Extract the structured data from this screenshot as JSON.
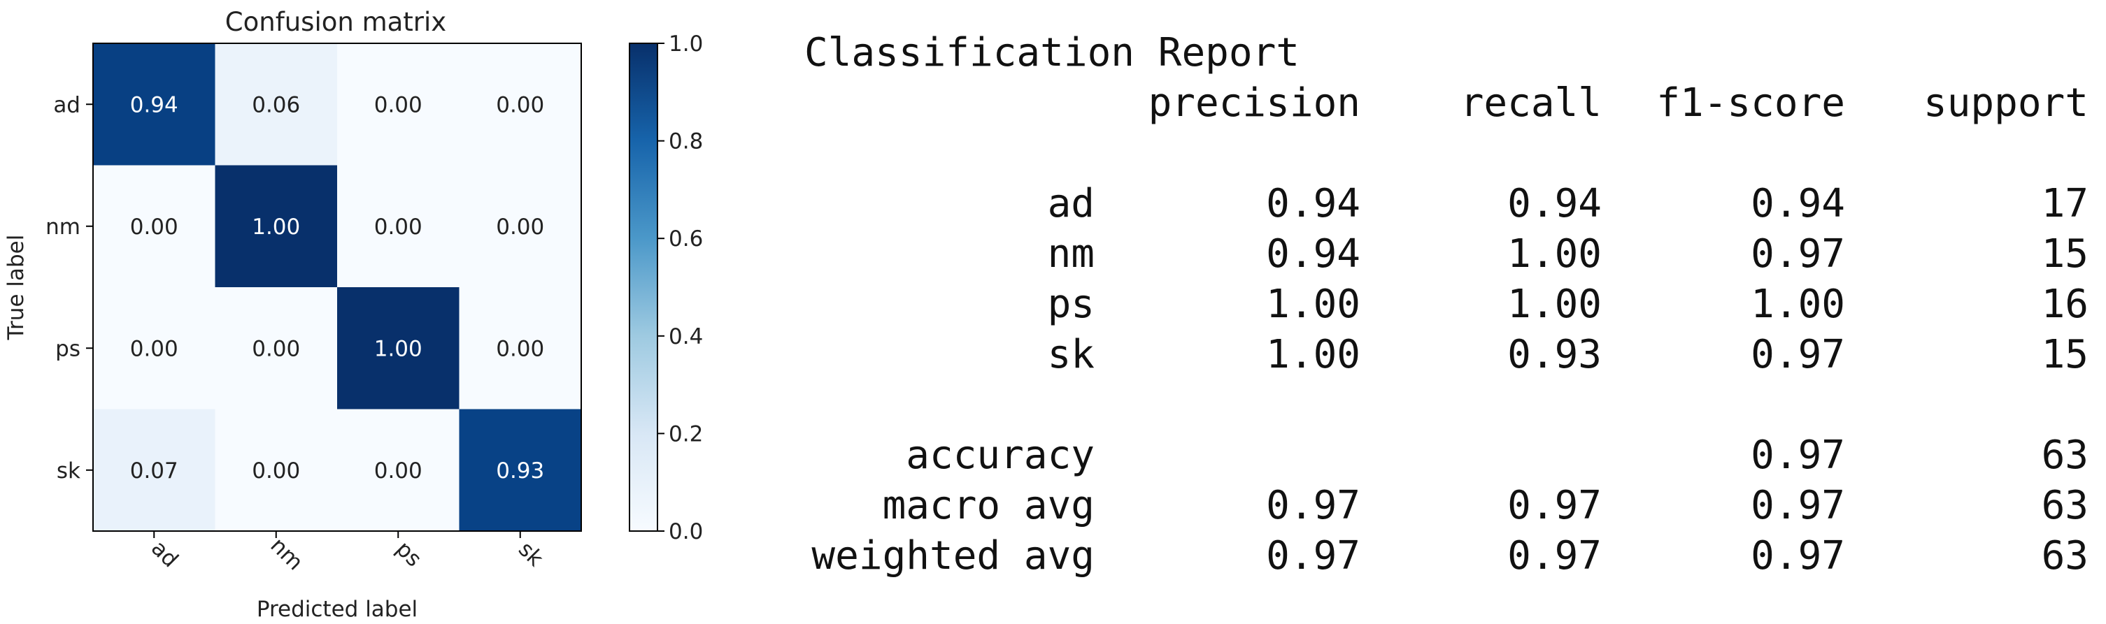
{
  "chart_data": [
    {
      "type": "heatmap",
      "title": "Confusion matrix",
      "xlabel": "Predicted label",
      "ylabel": "True label",
      "x_categories": [
        "ad",
        "nm",
        "ps",
        "sk"
      ],
      "y_categories": [
        "ad",
        "nm",
        "ps",
        "sk"
      ],
      "values": [
        [
          0.94,
          0.06,
          0.0,
          0.0
        ],
        [
          0.0,
          1.0,
          0.0,
          0.0
        ],
        [
          0.0,
          0.0,
          1.0,
          0.0
        ],
        [
          0.07,
          0.0,
          0.0,
          0.93
        ]
      ],
      "cell_labels": [
        [
          "0.94",
          "0.06",
          "0.00",
          "0.00"
        ],
        [
          "0.00",
          "1.00",
          "0.00",
          "0.00"
        ],
        [
          "0.00",
          "0.00",
          "1.00",
          "0.00"
        ],
        [
          "0.07",
          "0.00",
          "0.00",
          "0.93"
        ]
      ],
      "colormap": "Blues",
      "colorbar": {
        "range": [
          0.0,
          1.0
        ],
        "ticks": [
          0.0,
          0.2,
          0.4,
          0.6,
          0.8,
          1.0
        ],
        "tick_labels": [
          "0.0",
          "0.2",
          "0.4",
          "0.6",
          "0.8",
          "1.0"
        ]
      },
      "colors": {
        "low": "#f7fbff",
        "high": "#08306b",
        "text_dark": "#222222",
        "text_light": "#ffffff"
      }
    },
    {
      "type": "table",
      "title": "Classification Report",
      "columns": [
        "",
        "precision",
        "recall",
        "f1-score",
        "support"
      ],
      "rows": [
        [
          "ad",
          "0.94",
          "0.94",
          "0.94",
          "17"
        ],
        [
          "nm",
          "0.94",
          "1.00",
          "0.97",
          "15"
        ],
        [
          "ps",
          "1.00",
          "1.00",
          "1.00",
          "16"
        ],
        [
          "sk",
          "1.00",
          "0.93",
          "0.97",
          "15"
        ],
        [
          "accuracy",
          "",
          "",
          "0.97",
          "63"
        ],
        [
          "macro avg",
          "0.97",
          "0.97",
          "0.97",
          "63"
        ],
        [
          "weighted avg",
          "0.97",
          "0.97",
          "0.97",
          "63"
        ]
      ]
    }
  ]
}
